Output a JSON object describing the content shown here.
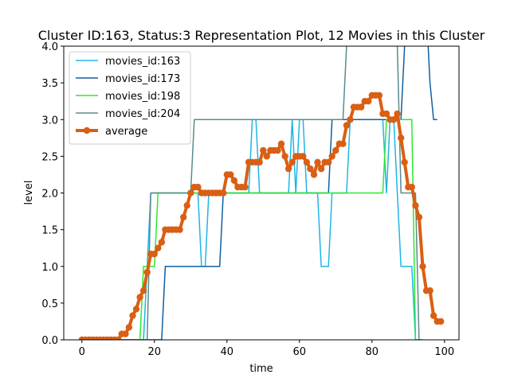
{
  "chart_data": {
    "type": "line",
    "title": "Cluster ID:163, Status:3 Representation Plot, 12 Movies in this Cluster",
    "xlabel": "time",
    "ylabel": "level",
    "xlim": [
      -5,
      104
    ],
    "ylim": [
      0,
      4.0
    ],
    "xticks": [
      0,
      20,
      40,
      60,
      80,
      100
    ],
    "yticks": [
      0.0,
      0.5,
      1.0,
      1.5,
      2.0,
      2.5,
      3.0,
      3.5,
      4.0
    ],
    "grid": false,
    "legend_position": "top-left",
    "series": [
      {
        "name": "movies_id:163",
        "color": "#1fb5e6",
        "width": 1.5,
        "marker": false,
        "points": [
          [
            0,
            0
          ],
          [
            17,
            0
          ],
          [
            18,
            1
          ],
          [
            19,
            2
          ],
          [
            32,
            2
          ],
          [
            33,
            1
          ],
          [
            34,
            1
          ],
          [
            35,
            2
          ],
          [
            46,
            2
          ],
          [
            47,
            3
          ],
          [
            48,
            3
          ],
          [
            49,
            2
          ],
          [
            57,
            2
          ],
          [
            58,
            3
          ],
          [
            59,
            2
          ],
          [
            60,
            3
          ],
          [
            61,
            3
          ],
          [
            62,
            2
          ],
          [
            65,
            2
          ],
          [
            66,
            1
          ],
          [
            68,
            1
          ],
          [
            69,
            2
          ],
          [
            73,
            2
          ],
          [
            74,
            3
          ],
          [
            83,
            3
          ],
          [
            84,
            2
          ],
          [
            85,
            3
          ],
          [
            86,
            3
          ],
          [
            87,
            2
          ],
          [
            88,
            1
          ],
          [
            91,
            1
          ],
          [
            92,
            0
          ],
          [
            93,
            0
          ]
        ]
      },
      {
        "name": "movies_id:173",
        "color": "#0f5fa2",
        "width": 1.5,
        "marker": false,
        "points": [
          [
            0,
            0
          ],
          [
            22,
            0
          ],
          [
            23,
            1
          ],
          [
            38,
            1
          ],
          [
            39,
            2
          ],
          [
            68,
            2
          ],
          [
            69,
            3
          ],
          [
            87,
            3
          ],
          [
            88,
            3
          ],
          [
            89,
            4
          ],
          [
            90,
            4.5
          ],
          [
            95,
            4.5
          ],
          [
            96,
            3.5
          ],
          [
            97,
            3
          ],
          [
            98,
            3
          ]
        ]
      },
      {
        "name": "movies_id:198",
        "color": "#2ee82e",
        "width": 1.5,
        "marker": false,
        "points": [
          [
            0,
            0
          ],
          [
            16,
            0
          ],
          [
            17,
            1
          ],
          [
            20,
            1
          ],
          [
            21,
            2
          ],
          [
            83,
            2
          ],
          [
            84,
            3
          ],
          [
            91,
            3
          ],
          [
            92,
            0
          ],
          [
            93,
            0
          ]
        ]
      },
      {
        "name": "movies_id:204",
        "color": "#5b8b8b",
        "width": 1.5,
        "marker": false,
        "points": [
          [
            0,
            0
          ],
          [
            18,
            0
          ],
          [
            19,
            2
          ],
          [
            30,
            2
          ],
          [
            31,
            3
          ],
          [
            72,
            3
          ],
          [
            73,
            4
          ],
          [
            74,
            4.5
          ],
          [
            86,
            4.5
          ],
          [
            87,
            4
          ],
          [
            88,
            2
          ],
          [
            92,
            2
          ],
          [
            93,
            0
          ],
          [
            94,
            0
          ]
        ]
      },
      {
        "name": "average",
        "color": "#d95f14",
        "width": 4,
        "marker": true,
        "points": [
          [
            0,
            0
          ],
          [
            1,
            0
          ],
          [
            2,
            0
          ],
          [
            3,
            0
          ],
          [
            4,
            0
          ],
          [
            5,
            0
          ],
          [
            6,
            0
          ],
          [
            7,
            0
          ],
          [
            8,
            0
          ],
          [
            9,
            0
          ],
          [
            10,
            0
          ],
          [
            11,
            0.08
          ],
          [
            12,
            0.08
          ],
          [
            13,
            0.17
          ],
          [
            14,
            0.33
          ],
          [
            15,
            0.42
          ],
          [
            16,
            0.58
          ],
          [
            17,
            0.67
          ],
          [
            18,
            0.92
          ],
          [
            19,
            1.17
          ],
          [
            20,
            1.17
          ],
          [
            21,
            1.25
          ],
          [
            22,
            1.33
          ],
          [
            23,
            1.5
          ],
          [
            24,
            1.5
          ],
          [
            25,
            1.5
          ],
          [
            26,
            1.5
          ],
          [
            27,
            1.5
          ],
          [
            28,
            1.67
          ],
          [
            29,
            1.83
          ],
          [
            30,
            2.0
          ],
          [
            31,
            2.08
          ],
          [
            32,
            2.08
          ],
          [
            33,
            2.0
          ],
          [
            34,
            2.0
          ],
          [
            35,
            2.0
          ],
          [
            36,
            2.0
          ],
          [
            37,
            2.0
          ],
          [
            38,
            2.0
          ],
          [
            39,
            2.0
          ],
          [
            40,
            2.25
          ],
          [
            41,
            2.25
          ],
          [
            42,
            2.17
          ],
          [
            43,
            2.08
          ],
          [
            44,
            2.08
          ],
          [
            45,
            2.08
          ],
          [
            46,
            2.42
          ],
          [
            47,
            2.42
          ],
          [
            48,
            2.42
          ],
          [
            49,
            2.42
          ],
          [
            50,
            2.58
          ],
          [
            51,
            2.5
          ],
          [
            52,
            2.58
          ],
          [
            53,
            2.58
          ],
          [
            54,
            2.58
          ],
          [
            55,
            2.67
          ],
          [
            56,
            2.5
          ],
          [
            57,
            2.33
          ],
          [
            58,
            2.42
          ],
          [
            59,
            2.5
          ],
          [
            60,
            2.5
          ],
          [
            61,
            2.5
          ],
          [
            62,
            2.42
          ],
          [
            63,
            2.33
          ],
          [
            64,
            2.25
          ],
          [
            65,
            2.42
          ],
          [
            66,
            2.33
          ],
          [
            67,
            2.42
          ],
          [
            68,
            2.42
          ],
          [
            69,
            2.5
          ],
          [
            70,
            2.58
          ],
          [
            71,
            2.67
          ],
          [
            72,
            2.67
          ],
          [
            73,
            2.92
          ],
          [
            74,
            3.0
          ],
          [
            75,
            3.17
          ],
          [
            76,
            3.17
          ],
          [
            77,
            3.17
          ],
          [
            78,
            3.25
          ],
          [
            79,
            3.25
          ],
          [
            80,
            3.33
          ],
          [
            81,
            3.33
          ],
          [
            82,
            3.33
          ],
          [
            83,
            3.08
          ],
          [
            84,
            3.08
          ],
          [
            85,
            3.0
          ],
          [
            86,
            3.0
          ],
          [
            87,
            3.08
          ],
          [
            88,
            2.75
          ],
          [
            89,
            2.42
          ],
          [
            90,
            2.08
          ],
          [
            91,
            2.08
          ],
          [
            92,
            1.83
          ],
          [
            93,
            1.67
          ],
          [
            94,
            1.0
          ],
          [
            95,
            0.67
          ],
          [
            96,
            0.67
          ],
          [
            97,
            0.33
          ],
          [
            98,
            0.25
          ],
          [
            99,
            0.25
          ]
        ]
      }
    ]
  }
}
